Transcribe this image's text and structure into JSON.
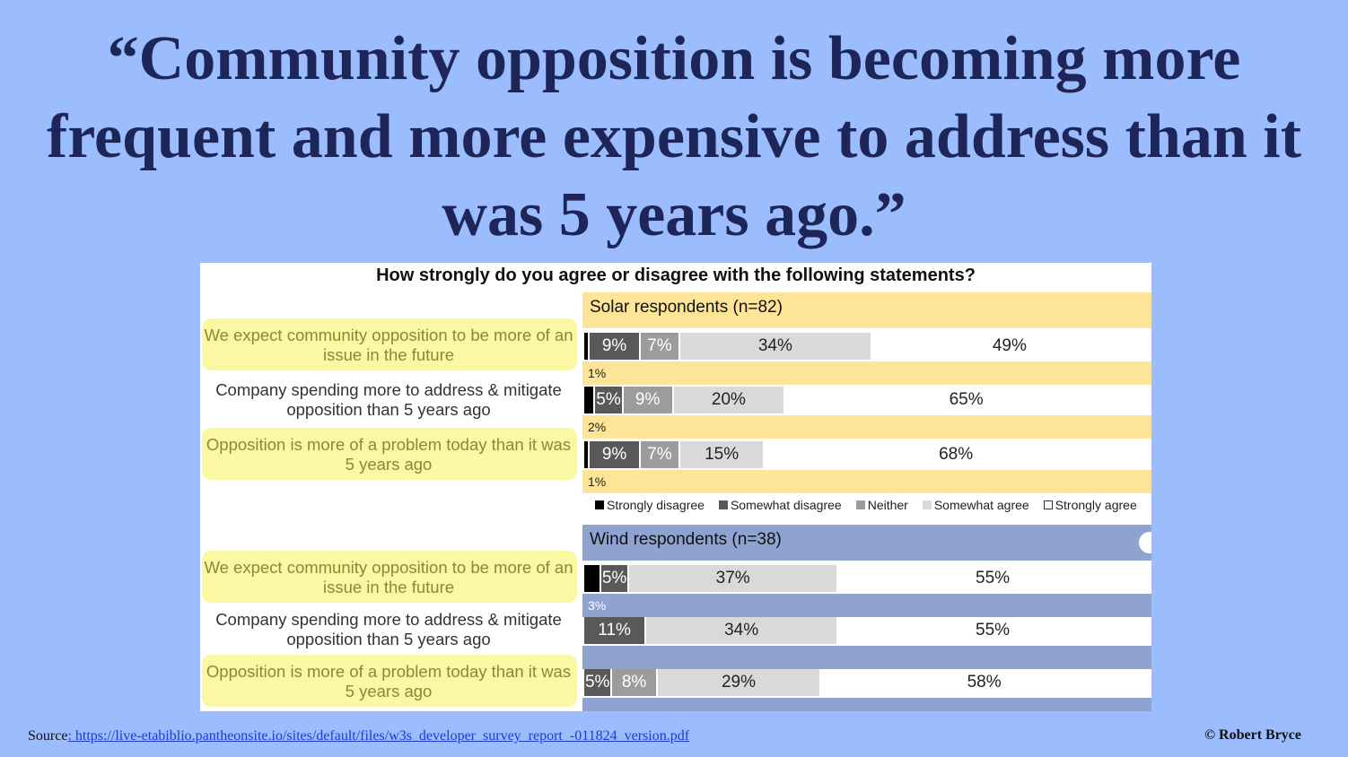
{
  "headline": "“Community opposition is becoming more frequent and more expensive to address than it was 5 years ago.”",
  "source": {
    "label": "Source",
    "link": ": https://live-etabiblio.pantheonsite.io/sites/default/files/w3s_developer_survey_report_-011824_version.pdf"
  },
  "copyright": "© Robert Bryce",
  "colors": {
    "page_bg": "#9bbcfd",
    "solar_header": "#fee497",
    "wind_header": "#8fa3d0",
    "strongly_disagree": "#000000",
    "somewhat_disagree": "#595959",
    "neither": "#9c9c9c",
    "somewhat_agree": "#d9d9d9",
    "strongly_agree": "#ffffff",
    "highlight": "#fbf79a"
  },
  "chart_data": {
    "type": "bar",
    "stacked": true,
    "orientation": "horizontal",
    "title": "How strongly do you agree or disagree with the following statements?",
    "legend": [
      "Strongly disagree",
      "Somewhat disagree",
      "Neither",
      "Somewhat agree",
      "Strongly agree"
    ],
    "legend_position": "bottom",
    "groups": [
      {
        "name": "Solar respondents (n=82)",
        "rows": [
          {
            "statement": "We expect community opposition to be more of an issue in the future",
            "highlighted": true,
            "values": [
              1,
              9,
              7,
              34,
              49
            ],
            "labels": [
              "",
              "9%",
              "7%",
              "34%",
              "49%"
            ],
            "below_label": "1%"
          },
          {
            "statement": "Company spending more to address & mitigate opposition than 5 years ago",
            "highlighted": false,
            "values": [
              2,
              5,
              9,
              20,
              65
            ],
            "labels": [
              "",
              "5%",
              "9%",
              "20%",
              "65%"
            ],
            "below_label": "2%"
          },
          {
            "statement": "Opposition is more of a problem today than it was 5 years ago",
            "highlighted": true,
            "values": [
              1,
              9,
              7,
              15,
              68
            ],
            "labels": [
              "",
              "9%",
              "7%",
              "15%",
              "68%"
            ],
            "below_label": "1%"
          }
        ]
      },
      {
        "name": "Wind respondents (n=38)",
        "rows": [
          {
            "statement": "We expect community opposition to be more of an issue in the future",
            "highlighted": true,
            "values": [
              3,
              5,
              0,
              37,
              55
            ],
            "labels": [
              "",
              "5%",
              "",
              "37%",
              "55%"
            ],
            "below_label": "3%"
          },
          {
            "statement": "Company spending more to address & mitigate opposition than 5 years ago",
            "highlighted": false,
            "values": [
              0,
              11,
              0,
              34,
              55
            ],
            "labels": [
              "",
              "11%",
              "",
              "34%",
              "55%"
            ],
            "below_label": ""
          },
          {
            "statement": "Opposition is more of a problem today than it was 5 years ago",
            "highlighted": true,
            "values": [
              0,
              5,
              8,
              29,
              58
            ],
            "labels": [
              "",
              "5%",
              "8%",
              "29%",
              "58%"
            ],
            "below_label": ""
          }
        ]
      }
    ]
  }
}
